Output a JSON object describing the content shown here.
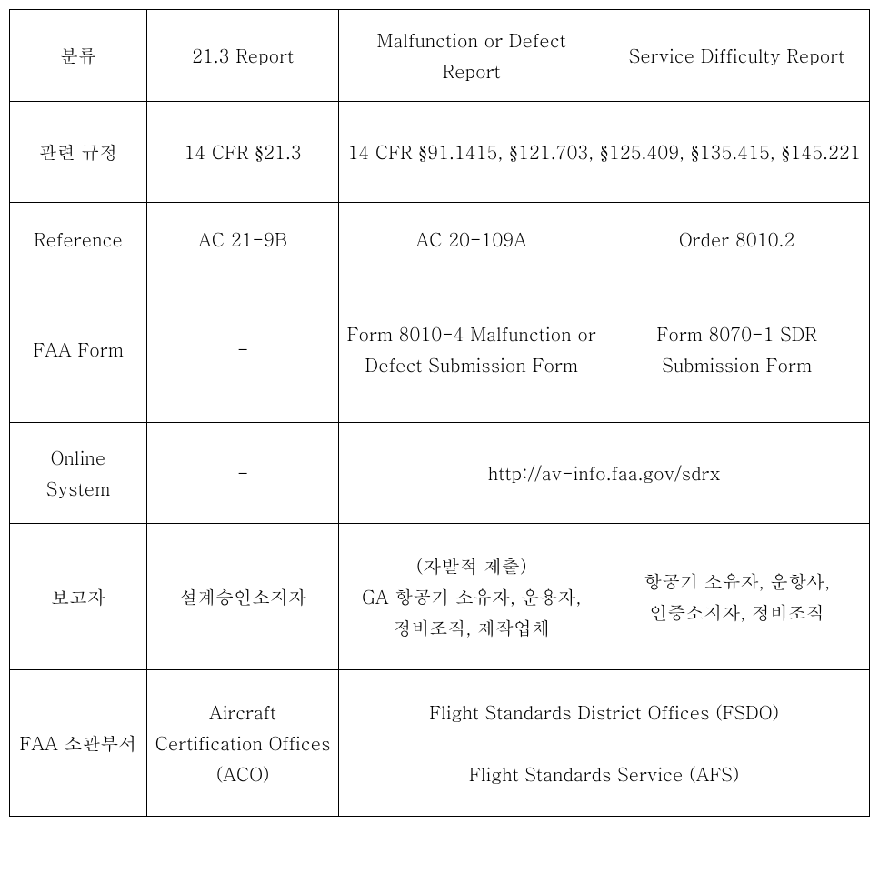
{
  "table": {
    "type": "table",
    "background_color": "#ffffff",
    "border_color": "#000000",
    "font_size": 20,
    "cell_padding": 10,
    "columns_widths": [
      150,
      210,
      290,
      290
    ],
    "header": {
      "c0": "분류",
      "c1": "21.3 Report",
      "c2": "Malfunction or Defect Report",
      "c3": "Service Difficulty Report"
    },
    "row_regulation": {
      "c0": "관련 규정",
      "c1": "14 CFR §21.3",
      "c2_3": "14 CFR §91.1415, §121.703, §125.409, §135.415, §145.221"
    },
    "row_reference": {
      "c0": "Reference",
      "c1": "AC 21-9B",
      "c2": "AC 20-109A",
      "c3": "Order 8010.2"
    },
    "row_faaform": {
      "c0": "FAA Form",
      "c1": "-",
      "c2": "Form 8010-4 Malfunction or Defect Submission Form",
      "c3": "Form 8070-1 SDR Submission Form"
    },
    "row_online": {
      "c0": "Online System",
      "c1": "-",
      "c2_3": "http://av-info.faa.gov/sdrx"
    },
    "row_reporter": {
      "c0": "보고자",
      "c1": "설계승인소지자",
      "c2_line1": "(자발적 제출)",
      "c2_line2": "GA 항공기 소유자, 운용자, 정비조직, 제작업체",
      "c3": "항공기 소유자, 운항사, 인증소지자, 정비조직"
    },
    "row_faaoffice": {
      "c0": "FAA 소관부서",
      "c1": "Aircraft Certification Offices (ACO)",
      "c2_3_line1": "Flight Standards District Offices (FSDO)",
      "c2_3_line2": "Flight Standards Service (AFS)"
    }
  }
}
